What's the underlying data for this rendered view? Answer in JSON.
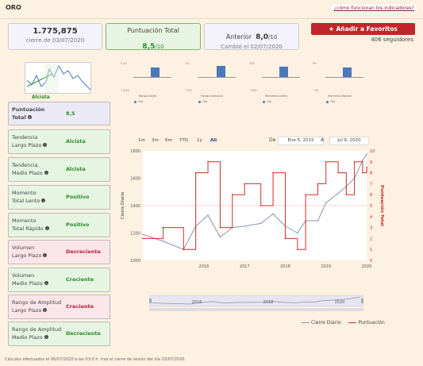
{
  "header": {
    "title": "ORO",
    "help_link": "¿cómo funcionan los indicadores?"
  },
  "summary": {
    "price": "1.775,875",
    "price_sub": "cierre de 03/07/2020",
    "score_title": "Puntuación Total",
    "score_value": "8,5",
    "score_suffix": "/10",
    "prev_label": "Anterior",
    "prev_value": "8,0",
    "prev_suffix": "/10",
    "prev_sub": "Cambió el 02/07/2020",
    "fav_button": "Añadir a Favoritos",
    "followers": "406 seguidores"
  },
  "thumb_label": "Alcista",
  "mini_charts": [
    {
      "xlabel": "Rango Diario",
      "top": "0,43",
      "bottom": "−0,43",
      "legend": "Oro"
    },
    {
      "xlabel": "Rango Semanal",
      "top": "1%",
      "bottom": "−1%",
      "legend": "Oro"
    },
    {
      "xlabel": "Momento Lento",
      "top": "200",
      "bottom": "−200",
      "legend": "Oro"
    },
    {
      "xlabel": "Momento Rápido",
      "top": "30",
      "bottom": "−30",
      "legend": "Oro"
    }
  ],
  "cards": [
    {
      "l1": "Puntuación",
      "l2": "Total",
      "value": "8,5",
      "status": "neutral"
    },
    {
      "l1": "Tendencia",
      "l2": "Largo Plazo",
      "value": "Alcista",
      "status": "good"
    },
    {
      "l1": "Tendencia",
      "l2": "Medio Plazo",
      "value": "Alcista",
      "status": "good"
    },
    {
      "l1": "Momento",
      "l2": "Total Lento",
      "value": "Positivo",
      "status": "good"
    },
    {
      "l1": "Momento",
      "l2": "Total Rápido",
      "value": "Positivo",
      "status": "good"
    },
    {
      "l1": "Volumen",
      "l2": "Largo Plazo",
      "value": "Decreciente",
      "status": "bad"
    },
    {
      "l1": "Volumen",
      "l2": "Medio Plazo",
      "value": "Creciente",
      "status": "good"
    },
    {
      "l1": "Rango de Amplitud",
      "l2": "Largo Plazo",
      "value": "Creciente",
      "status": "bad"
    },
    {
      "l1": "Rango de Amplitud",
      "l2": "Medio Plazo",
      "value": "Decreciente",
      "status": "good"
    }
  ],
  "controls": {
    "zoom": [
      "1m",
      "3m",
      "6m",
      "YTD",
      "1y",
      "All"
    ],
    "from_label": "De",
    "from_value": "Ene 5, 2015",
    "to_label": "A",
    "to_value": "Jul 6, 2020"
  },
  "colors": {
    "good_bg": "#e5f5e2",
    "good_text": "#2a8a2a",
    "bad_bg": "#fae6ea",
    "bad_text": "#b8203a",
    "neutral_bg": "#ece9f6",
    "neutral_text": "#2a8a2a",
    "price_line": "#8a95ab",
    "score_line": "#d42a2a",
    "accent": "#c0262b"
  },
  "chart_data": {
    "type": "line",
    "ylabel": "Cierre Diario",
    "y2label": "Puntuación Total",
    "x_ticks": [
      "2016",
      "2017",
      "2018",
      "2019",
      "2020"
    ],
    "y_ticks": [
      "1000",
      "1200",
      "1400",
      "1600",
      "1800"
    ],
    "y2_ticks": [
      "0",
      "1",
      "2",
      "3",
      "4",
      "5",
      "6",
      "7",
      "8",
      "9",
      "10"
    ],
    "ylim": [
      1000,
      1800
    ],
    "y2lim": [
      0,
      10
    ],
    "x": [
      2015.0,
      2015.5,
      2016.0,
      2016.3,
      2016.6,
      2016.9,
      2017.2,
      2017.5,
      2017.9,
      2018.2,
      2018.5,
      2018.8,
      2019.0,
      2019.3,
      2019.5,
      2019.8,
      2020.0,
      2020.2,
      2020.4,
      2020.5
    ],
    "series": [
      {
        "name": "Cierre Diario",
        "axis": "y",
        "values": [
          1190,
          1140,
          1080,
          1250,
          1330,
          1170,
          1240,
          1250,
          1270,
          1340,
          1250,
          1200,
          1290,
          1290,
          1420,
          1490,
          1540,
          1600,
          1730,
          1775
        ]
      },
      {
        "name": "Puntuación",
        "axis": "y2",
        "values": [
          2,
          3,
          1,
          8,
          9,
          3,
          6,
          7,
          5,
          8,
          2,
          1,
          6,
          7,
          9,
          8,
          6,
          9,
          8,
          8.5
        ]
      }
    ],
    "navigator_ticks": [
      "2016",
      "2018",
      "2020"
    ]
  },
  "legend": {
    "price": "Cierre Diario",
    "score": "Puntuación"
  },
  "footer": "Cálculos efectuados el 06/07/2020 a las 03:0 h. tras el cierre de sesión del día 03/07/2020."
}
